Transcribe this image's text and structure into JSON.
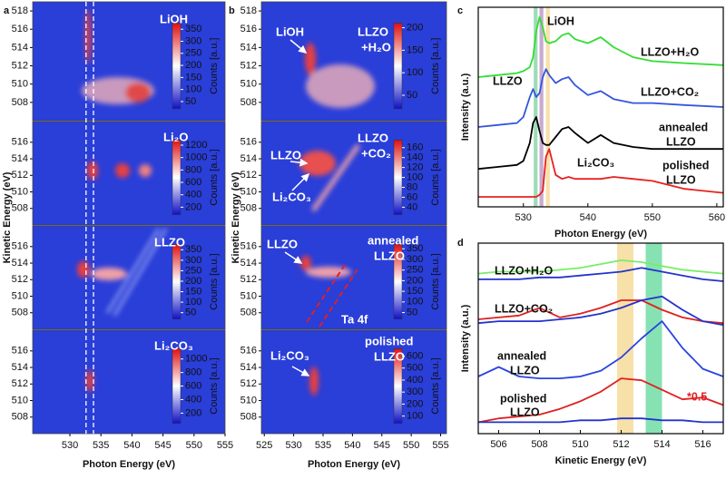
{
  "chart_data": [
    {
      "type": "heatmap",
      "panel_label": "a",
      "xlabel": "Photon Energy (eV)",
      "ylabel": "Kinetic Energy (eV)",
      "xlim": [
        524,
        555
      ],
      "xticks": [
        530,
        535,
        540,
        545,
        550,
        555
      ],
      "dashed_lines": [
        532.6,
        533.8
      ],
      "panels": [
        {
          "annotations": [
            "LiOH"
          ],
          "ylim": [
            506,
            519
          ],
          "yticks": [
            508,
            510,
            512,
            514,
            516,
            518
          ],
          "colorbar": {
            "label": "Counts [a.u.]",
            "lim": [
              20,
              375
            ],
            "ticks": [
              50,
              100,
              150,
              200,
              250,
              300,
              350
            ]
          }
        },
        {
          "annotations": [
            "Li₂O"
          ],
          "ylim": [
            506,
            518.5
          ],
          "yticks": [
            508,
            510,
            512,
            514,
            516
          ],
          "colorbar": {
            "label": "Counts [a.u.]",
            "lim": [
              80,
              1280
            ],
            "ticks": [
              200,
              400,
              600,
              800,
              1000,
              1200
            ]
          }
        },
        {
          "annotations": [
            "LLZO"
          ],
          "ylim": [
            506,
            518.5
          ],
          "yticks": [
            508,
            510,
            512,
            514,
            516
          ],
          "colorbar": {
            "label": "Counts [a.u.]",
            "lim": [
              20,
              375
            ],
            "ticks": [
              50,
              100,
              150,
              200,
              250,
              300,
              350
            ]
          }
        },
        {
          "annotations": [
            "Li₂CO₃"
          ],
          "ylim": [
            506,
            518.5
          ],
          "yticks": [
            508,
            510,
            512,
            514,
            516
          ],
          "colorbar": {
            "label": "Counts [a.u.]",
            "lim": [
              50,
              1150
            ],
            "ticks": [
              200,
              400,
              600,
              800,
              1000
            ]
          }
        }
      ]
    },
    {
      "type": "heatmap",
      "panel_label": "b",
      "xlabel": "Photon Energy (eV)",
      "ylabel": "Kinetic Energy (eV)",
      "xlim": [
        524.5,
        556
      ],
      "xticks": [
        525,
        530,
        535,
        540,
        545,
        550,
        555
      ],
      "panels": [
        {
          "annotations": [
            "LiOH",
            "LLZO",
            "+H₂O"
          ],
          "ylim": [
            506,
            519
          ],
          "yticks": [
            508,
            510,
            512,
            514,
            516,
            518
          ],
          "colorbar": {
            "label": "Counts [a.u.]",
            "lim": [
              20,
              210
            ],
            "ticks": [
              50,
              100,
              150,
              200
            ]
          }
        },
        {
          "annotations": [
            "LLZO",
            "LLZO",
            "+CO₂",
            "Li₂CO₃"
          ],
          "ylim": [
            506,
            518.5
          ],
          "yticks": [
            508,
            510,
            512,
            514,
            516
          ],
          "colorbar": {
            "label": "Counts [a.u.]",
            "lim": [
              25,
              175
            ],
            "ticks": [
              40,
              60,
              80,
              100,
              120,
              140,
              160
            ]
          }
        },
        {
          "annotations": [
            "LLZO",
            "annealed",
            "LLZO",
            "Ta 4f"
          ],
          "ylim": [
            506,
            518.5
          ],
          "yticks": [
            508,
            510,
            512,
            514,
            516
          ],
          "colorbar": {
            "label": "Counts [a.u.]",
            "lim": [
              20,
              370
            ],
            "ticks": [
              50,
              100,
              150,
              200,
              250,
              300,
              350
            ]
          }
        },
        {
          "annotations": [
            "Li₂CO₃",
            "polished",
            "LLZO"
          ],
          "ylim": [
            506,
            518.5
          ],
          "yticks": [
            508,
            510,
            512,
            514,
            516
          ],
          "colorbar": {
            "label": "Counts [a.u.]",
            "lim": [
              40,
              660
            ],
            "ticks": [
              100,
              200,
              300,
              400,
              500,
              600
            ]
          }
        }
      ]
    },
    {
      "type": "line",
      "panel_label": "c",
      "xlabel": "Photon Energy (eV)",
      "ylabel": "Intensity (a.u.)",
      "xlim": [
        523,
        561
      ],
      "xticks": [
        530,
        540,
        550,
        560
      ],
      "ylim": [
        0,
        10
      ],
      "annotations": [
        "LiOH",
        "LLZO",
        "Li₂CO₃",
        "LLZO+H₂O",
        "LLZO+CO₂",
        "annealed",
        "LLZO",
        "polished",
        "LLZO"
      ],
      "bands": [
        {
          "xmin": 531.6,
          "xmax": 532.2,
          "color": "#7fd0a0"
        },
        {
          "xmin": 532.5,
          "xmax": 533.1,
          "color": "#b48fbf"
        },
        {
          "xmin": 533.5,
          "xmax": 534.1,
          "color": "#f5d58c"
        }
      ],
      "x": [
        523,
        526,
        529,
        530,
        531,
        531.5,
        532,
        532.5,
        533,
        533.5,
        534,
        535,
        536,
        537,
        538,
        540,
        542,
        544,
        547,
        550,
        555,
        561
      ],
      "series": [
        {
          "color": "#e82020",
          "values": [
            0.5,
            0.5,
            0.5,
            0.5,
            0.5,
            0.5,
            0.5,
            0.6,
            0.8,
            2.5,
            2.9,
            1.6,
            1.4,
            1.5,
            1.4,
            1.4,
            1.4,
            1.5,
            1.4,
            1.3,
            0.9,
            0.7
          ]
        },
        {
          "color": "#000000",
          "values": [
            1.9,
            2.0,
            2.1,
            2.3,
            3.2,
            4.2,
            4.5,
            3.8,
            3.2,
            3.1,
            3.1,
            3.5,
            3.9,
            4.0,
            3.7,
            3.2,
            3.6,
            3.2,
            3.0,
            2.9,
            2.9,
            2.9
          ]
        },
        {
          "color": "#3355dd",
          "values": [
            4.0,
            4.1,
            4.2,
            4.5,
            5.5,
            5.9,
            5.5,
            5.7,
            6.5,
            6.9,
            6.6,
            6.2,
            6.4,
            6.5,
            6.1,
            5.6,
            5.8,
            5.4,
            5.2,
            5.2,
            5.1,
            5.0
          ]
        },
        {
          "color": "#33dd33",
          "values": [
            6.5,
            6.6,
            6.7,
            6.8,
            7.0,
            7.5,
            8.8,
            9.5,
            9.0,
            8.3,
            8.2,
            8.3,
            8.6,
            8.7,
            8.4,
            8.2,
            8.5,
            8.0,
            7.5,
            7.3,
            7.2,
            7.1
          ]
        }
      ]
    },
    {
      "type": "line",
      "panel_label": "d",
      "xlabel": "Kinetic Energy (eV)",
      "ylabel": "Intensity (a.u.)",
      "xlim": [
        505,
        517
      ],
      "xticks": [
        506,
        508,
        510,
        512,
        514,
        516
      ],
      "ylim": [
        0,
        10
      ],
      "annotations": [
        "LLZO+H₂O",
        "LLZO+CO₂",
        "annealed",
        "LLZO",
        "polished",
        "LLZO",
        "*0.5"
      ],
      "bands": [
        {
          "xmin": 511.8,
          "xmax": 512.6,
          "color": "#f5d58c"
        },
        {
          "xmin": 513.2,
          "xmax": 514.0,
          "color": "#5fd89a"
        }
      ],
      "x": [
        505,
        506,
        507,
        508,
        509,
        510,
        511,
        512,
        513,
        514,
        515,
        516,
        517
      ],
      "series": [
        {
          "color": "#77ee66",
          "values": [
            8.4,
            8.5,
            8.5,
            8.5,
            8.6,
            8.7,
            8.9,
            9.1,
            9.0,
            8.8,
            8.6,
            8.5,
            8.4
          ]
        },
        {
          "color": "#2233cc",
          "values": [
            8.1,
            8.1,
            8.1,
            8.2,
            8.2,
            8.3,
            8.4,
            8.5,
            8.7,
            8.5,
            8.3,
            8.1,
            8.0
          ]
        },
        {
          "color": "#e02020",
          "values": [
            6.0,
            6.1,
            6.2,
            6.6,
            6.1,
            6.3,
            6.6,
            7.0,
            7.0,
            6.5,
            6.1,
            5.9,
            5.8
          ]
        },
        {
          "color": "#2233cc",
          "values": [
            5.8,
            5.9,
            5.9,
            5.9,
            6.0,
            6.1,
            6.3,
            6.6,
            7.0,
            7.2,
            6.5,
            5.9,
            5.7
          ]
        },
        {
          "color": "#2a44e0",
          "values": [
            3.0,
            3.5,
            3.0,
            2.9,
            2.9,
            3.0,
            3.3,
            4.0,
            5.0,
            5.9,
            4.5,
            3.4,
            3.0
          ]
        },
        {
          "color": "#e02020",
          "values": [
            0.6,
            0.8,
            0.9,
            1.0,
            1.3,
            1.7,
            2.2,
            2.9,
            2.8,
            2.3,
            1.8,
            1.9,
            1.5
          ]
        },
        {
          "color": "#2233cc",
          "values": [
            0.6,
            0.6,
            0.6,
            0.6,
            0.6,
            0.7,
            0.7,
            0.8,
            0.8,
            0.7,
            0.7,
            0.6,
            0.6
          ]
        }
      ]
    }
  ]
}
